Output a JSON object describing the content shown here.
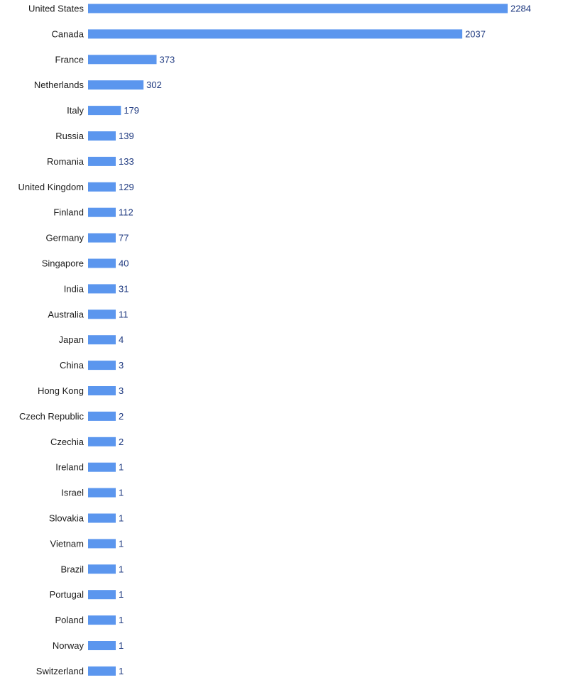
{
  "chart_data": {
    "type": "bar",
    "orientation": "horizontal",
    "categories": [
      "United States",
      "Canada",
      "France",
      "Netherlands",
      "Italy",
      "Russia",
      "Romania",
      "United Kingdom",
      "Finland",
      "Germany",
      "Singapore",
      "India",
      "Australia",
      "Japan",
      "China",
      "Hong Kong",
      "Czech Republic",
      "Czechia",
      "Ireland",
      "Israel",
      "Slovakia",
      "Vietnam",
      "Brazil",
      "Portugal",
      "Poland",
      "Norway",
      "Switzerland"
    ],
    "values": [
      2284,
      2037,
      373,
      302,
      179,
      139,
      133,
      129,
      112,
      77,
      40,
      31,
      11,
      4,
      3,
      3,
      2,
      2,
      1,
      1,
      1,
      1,
      1,
      1,
      1,
      1,
      1
    ],
    "title": "",
    "xlabel": "",
    "ylabel": "",
    "xlim": [
      0,
      2284
    ],
    "grid": false,
    "legend": "none",
    "bar_color": "#5b96ee",
    "value_label_color": "#1f3a80",
    "category_label_color": "#1b1b1b"
  }
}
